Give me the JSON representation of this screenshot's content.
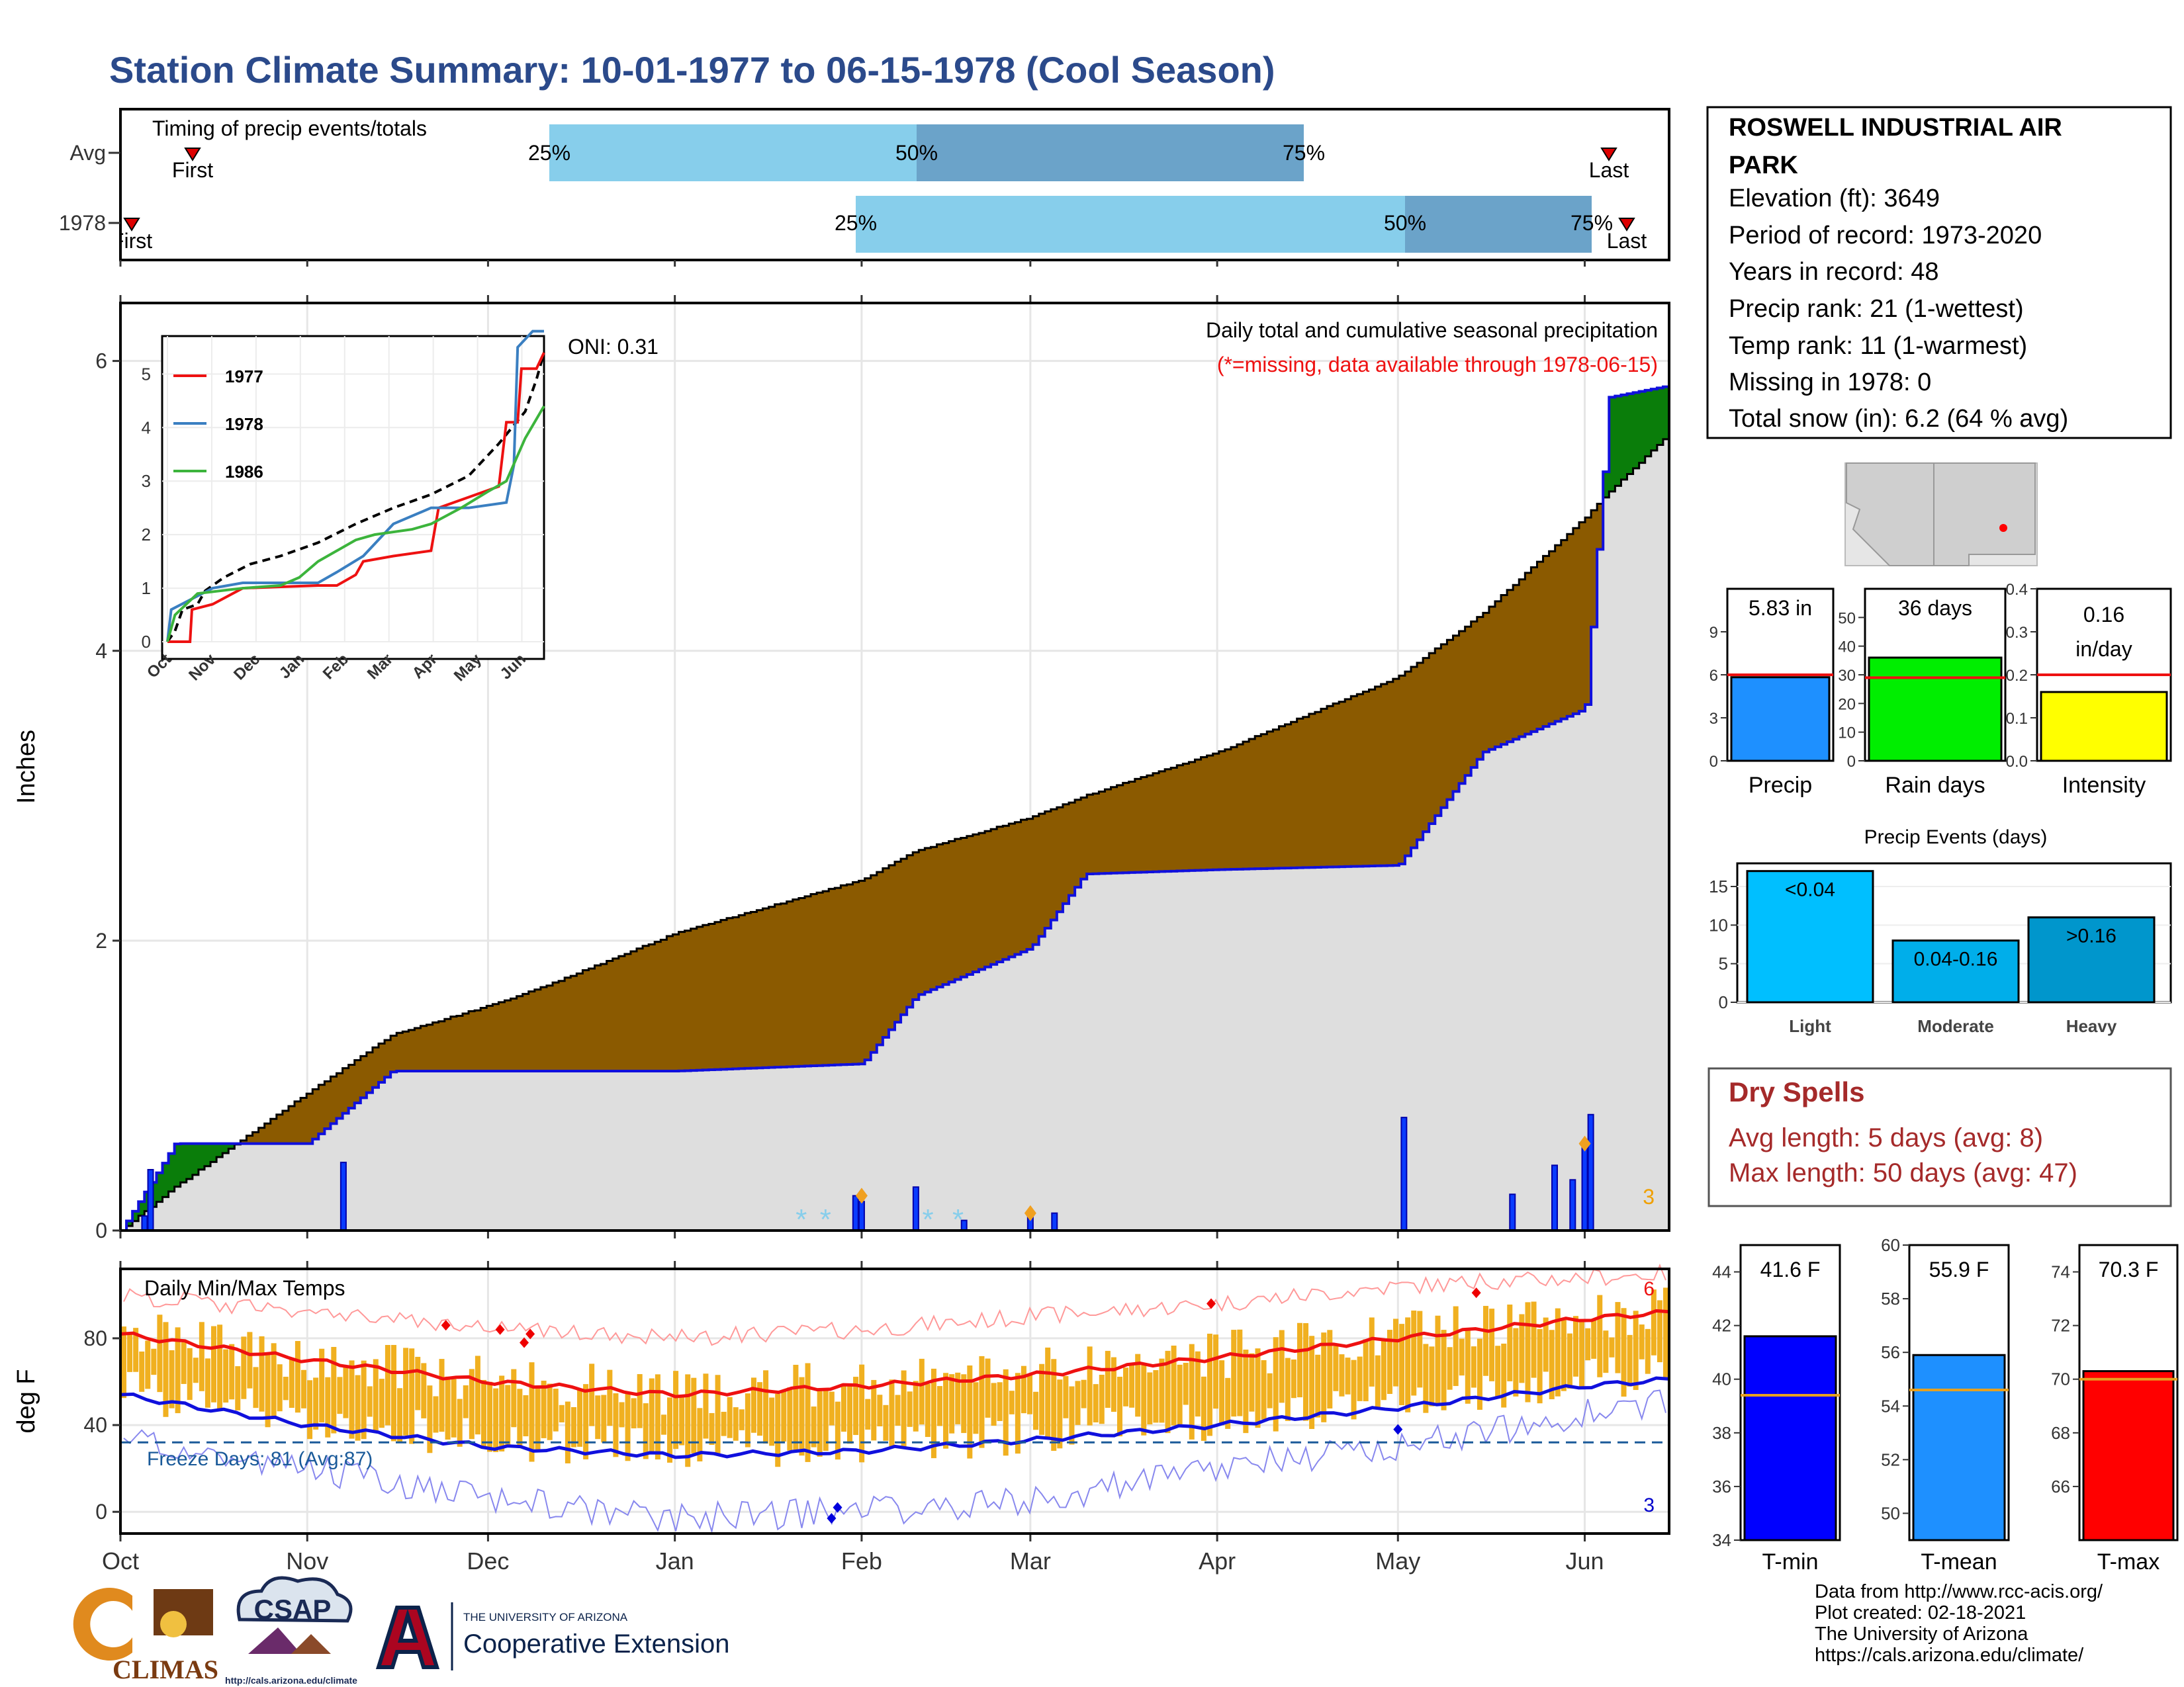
{
  "title": "Station Climate Summary: 10-01-1977 to 06-15-1978 (Cool Season)",
  "colors": {
    "title": "#2b4a8b",
    "brown": "#8b5a00",
    "green_fill": "#0a7d0a",
    "blue_line": "#1010dd",
    "grey_fill": "#dedede",
    "light_blue": "#87ceeb",
    "mid_blue": "#6ba3c9",
    "red": "#ee1111",
    "orange": "#f0b020",
    "dry_red": "#a52a2a"
  },
  "timing": {
    "label": "Timing of precip events/totals",
    "rows": [
      {
        "name": "Avg",
        "first_label": "First",
        "last_label": "Last",
        "p25": "25%",
        "p50": "50%",
        "p75": "75%"
      },
      {
        "name": "1978",
        "first_label": "First",
        "last_label": "Last",
        "p25": "25%",
        "p50": "50%",
        "p75": "75%"
      }
    ]
  },
  "precip_panel": {
    "title": "Daily total and cumulative seasonal precipitation",
    "missing_note": "(*=missing, data available through 1978-06-15)",
    "oni": "ONI: 0.31",
    "ylabel": "Inches",
    "yticks": [
      "0",
      "2",
      "4",
      "6"
    ],
    "heavy_count": "3"
  },
  "inset": {
    "legend": [
      "1977",
      "1978",
      "1986"
    ],
    "yticks": [
      "0",
      "1",
      "2",
      "3",
      "4",
      "5"
    ],
    "xticks": [
      "Oct",
      "Nov",
      "Dec",
      "Jan",
      "Feb",
      "Mar",
      "Apr",
      "May",
      "Jun"
    ]
  },
  "temp_panel": {
    "title": "Daily Min/Max Temps",
    "ylabel": "deg F",
    "yticks": [
      "0",
      "40",
      "80"
    ],
    "freeze_label": "Freeze Days: 81 (Avg:87)",
    "record_high_count": "6",
    "record_low_count": "3"
  },
  "month_labels": [
    "Oct",
    "Nov",
    "Dec",
    "Jan",
    "Feb",
    "Mar",
    "Apr",
    "May",
    "Jun"
  ],
  "station": {
    "name_line1": "ROSWELL INDUSTRIAL AIR",
    "name_line2": "PARK",
    "elevation": "Elevation (ft): 3649",
    "period": "Period of record: 1973-2020",
    "years": "Years in record: 48",
    "precip_rank": "Precip rank: 21 (1-wettest)",
    "temp_rank": "Temp rank: 11 (1-warmest)",
    "missing": "Missing in 1978: 0",
    "snow": "Total snow (in): 6.2 (64 % avg)"
  },
  "summary_bars": [
    {
      "label": "Precip",
      "value_text": "5.83 in",
      "value": 5.83,
      "avg": 6.0,
      "ymax": 12,
      "ticks": [
        "0",
        "3",
        "6",
        "9"
      ],
      "tickvals": [
        0,
        3,
        6,
        9
      ],
      "color": "#1e90ff"
    },
    {
      "label": "Rain days",
      "value_text": "36 days",
      "value": 36,
      "avg": 29,
      "ymax": 60,
      "ticks": [
        "0",
        "10",
        "20",
        "30",
        "40",
        "50"
      ],
      "tickvals": [
        0,
        10,
        20,
        30,
        40,
        50
      ],
      "color": "#00ee00"
    },
    {
      "label": "Intensity",
      "value_text": "0.16",
      "value_text2": "in/day",
      "value": 0.16,
      "avg": 0.2,
      "ymax": 0.4,
      "ticks": [
        "0.0",
        "0.1",
        "0.2",
        "0.3",
        "0.4"
      ],
      "tickvals": [
        0,
        0.1,
        0.2,
        0.3,
        0.4
      ],
      "color": "#ffff00"
    }
  ],
  "precip_events": {
    "title": "Precip Events (days)",
    "yticks": [
      "0",
      "5",
      "10",
      "15"
    ],
    "bars": [
      {
        "label": "Light",
        "inner": "<0.04",
        "value": 17,
        "color": "#00bfff"
      },
      {
        "label": "Moderate",
        "inner": "0.04-0.16",
        "value": 8,
        "color": "#00aeea"
      },
      {
        "label": "Heavy",
        "inner": ">0.16",
        "value": 11,
        "color": "#0096cc"
      }
    ]
  },
  "dry_spells": {
    "title": "Dry Spells",
    "avg_length": "Avg length: 5 days (avg: 8)",
    "max_length": "Max length: 50 days (avg: 47)"
  },
  "temp_bars": [
    {
      "label": "T-min",
      "value_text": "41.6 F",
      "value": 41.6,
      "avg": 39.4,
      "ymin": 34,
      "ymax": 45,
      "ticks": [
        "34",
        "36",
        "38",
        "40",
        "42",
        "44"
      ],
      "tickvals": [
        34,
        36,
        38,
        40,
        42,
        44
      ],
      "color": "#0000ff"
    },
    {
      "label": "T-mean",
      "value_text": "55.9 F",
      "value": 55.9,
      "avg": 54.6,
      "ymin": 49,
      "ymax": 60,
      "ticks": [
        "50",
        "52",
        "54",
        "56",
        "58",
        "60"
      ],
      "tickvals": [
        50,
        52,
        54,
        56,
        58,
        60
      ],
      "color": "#1e90ff"
    },
    {
      "label": "T-max",
      "value_text": "70.3 F",
      "value": 70.3,
      "avg": 70.0,
      "ymin": 64,
      "ymax": 75,
      "ticks": [
        "66",
        "68",
        "70",
        "72",
        "74"
      ],
      "tickvals": [
        66,
        68,
        70,
        72,
        74
      ],
      "color": "#ff0000"
    }
  ],
  "logos": {
    "climas": "CLIMAS",
    "csap": "CSAP",
    "csap_url": "http://cals.arizona.edu/climate",
    "ua_small": "THE UNIVERSITY OF ARIZONA",
    "ua_big": "Cooperative Extension"
  },
  "credits": {
    "line1": "Data from http://www.rcc-acis.org/",
    "line2": "Plot created: 02-18-2021",
    "line3": "The University of Arizona",
    "line4": "https://cals.arizona.edu/climate/"
  },
  "chart_data": [
    {
      "type": "area",
      "title": "Daily total and cumulative seasonal precipitation",
      "ylabel": "Inches",
      "ylim": [
        0,
        6.4
      ],
      "x": [
        "1977-10-01",
        "1977-10-10",
        "1977-11-01",
        "1977-11-15",
        "1977-12-01",
        "1977-12-10",
        "1978-01-01",
        "1978-02-01",
        "1978-02-10",
        "1978-03-01",
        "1978-03-10",
        "1978-04-01",
        "1978-05-01",
        "1978-05-15",
        "1978-06-01",
        "1978-06-05",
        "1978-06-15"
      ],
      "series": [
        {
          "name": "Avg",
          "values": [
            0.0,
            0.3,
            0.95,
            1.35,
            1.55,
            1.68,
            2.05,
            2.42,
            2.62,
            2.85,
            3.0,
            3.3,
            3.82,
            4.26,
            4.92,
            5.1,
            5.5
          ]
        },
        {
          "name": "1978",
          "values": [
            0.0,
            0.6,
            0.6,
            1.1,
            1.1,
            1.1,
            1.1,
            1.15,
            1.62,
            1.95,
            2.46,
            2.49,
            2.52,
            3.3,
            3.6,
            5.75,
            5.83
          ]
        }
      ],
      "daily_bars": [
        {
          "x": "1977-10-05",
          "y": 0.1
        },
        {
          "x": "1977-10-06",
          "y": 0.42
        },
        {
          "x": "1977-11-07",
          "y": 0.47
        },
        {
          "x": "1978-01-31",
          "y": 0.24
        },
        {
          "x": "1978-02-01",
          "y": 0.2
        },
        {
          "x": "1978-02-10",
          "y": 0.3
        },
        {
          "x": "1978-02-18",
          "y": 0.07
        },
        {
          "x": "1978-03-01",
          "y": 0.1
        },
        {
          "x": "1978-03-05",
          "y": 0.12
        },
        {
          "x": "1978-05-02",
          "y": 0.78
        },
        {
          "x": "1978-05-20",
          "y": 0.25
        },
        {
          "x": "1978-05-27",
          "y": 0.45
        },
        {
          "x": "1978-05-30",
          "y": 0.35
        },
        {
          "x": "1978-06-01",
          "y": 0.6
        },
        {
          "x": "1978-06-02",
          "y": 0.8
        }
      ]
    },
    {
      "type": "line",
      "title": "Daily Min/Max Temps",
      "ylabel": "deg F",
      "ylim": [
        -10,
        112
      ],
      "x": [
        "1977-10-01",
        "1977-11-01",
        "1977-12-01",
        "1978-01-01",
        "1978-02-01",
        "1978-03-01",
        "1978-04-01",
        "1978-05-01",
        "1978-06-01",
        "1978-06-15"
      ],
      "series": [
        {
          "name": "Avg max",
          "values": [
            82,
            70,
            60,
            54,
            58,
            63,
            71,
            80,
            89,
            92
          ]
        },
        {
          "name": "Avg min",
          "values": [
            54,
            40,
            30,
            26,
            28,
            33,
            40,
            48,
            58,
            61
          ]
        },
        {
          "name": "Record high",
          "values": [
            100,
            92,
            84,
            80,
            84,
            90,
            96,
            104,
            108,
            110
          ]
        },
        {
          "name": "Record low",
          "values": [
            33,
            20,
            6,
            -3,
            0,
            5,
            20,
            30,
            45,
            50
          ]
        }
      ],
      "freeze_line": 32
    }
  ]
}
